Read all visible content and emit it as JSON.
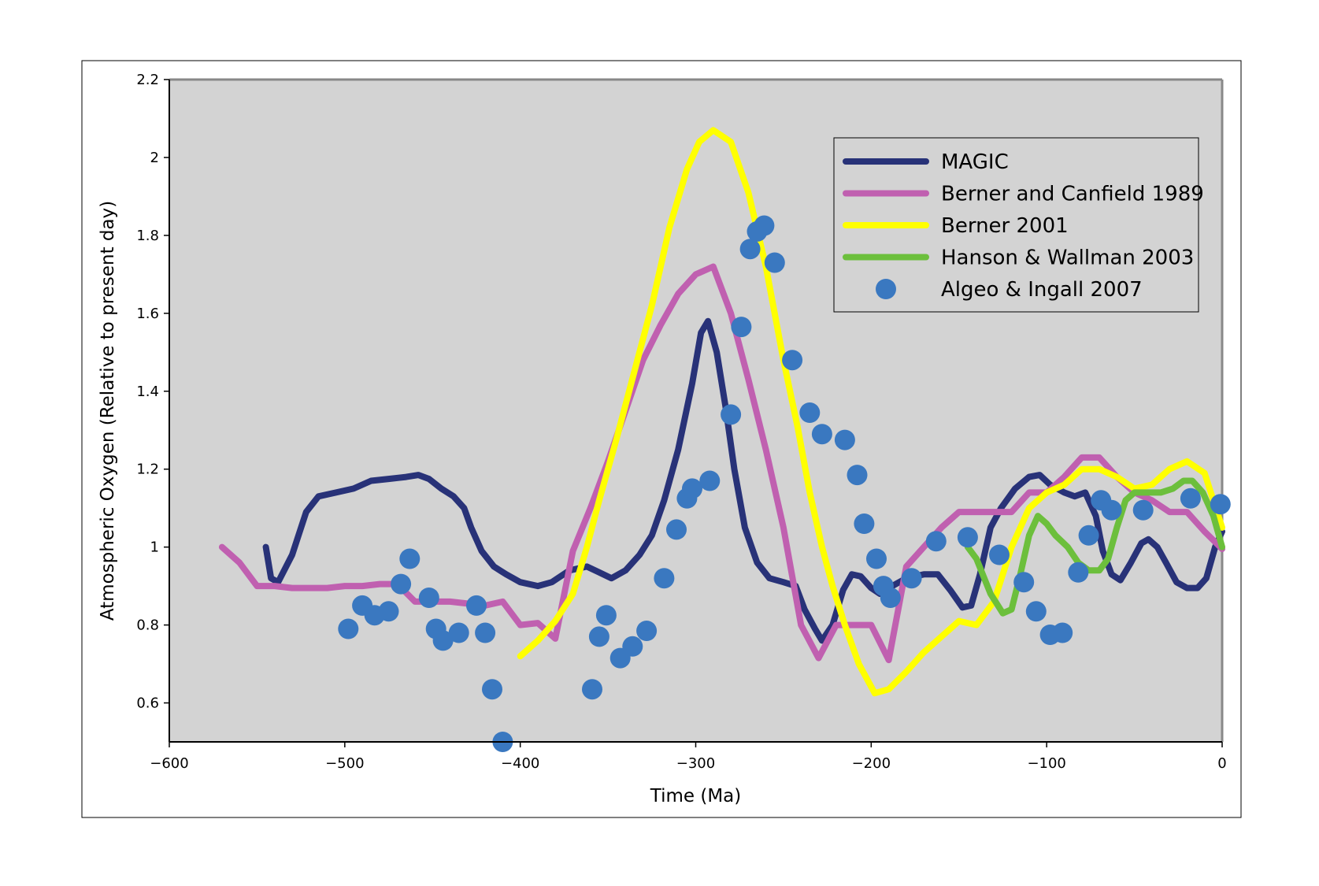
{
  "chart_data": {
    "type": "line",
    "title": "",
    "xlabel": "Time (Ma)",
    "ylabel": "Atmospheric Oxygen (Relative to present day)",
    "xlim": [
      -600,
      0
    ],
    "ylim": [
      0.5,
      2.2
    ],
    "x_ticks": [
      -600,
      -500,
      -400,
      -300,
      -200,
      -100,
      0
    ],
    "x_tick_labels": [
      "−600",
      "−500",
      "−400",
      "−300",
      "−200",
      "−100",
      "0"
    ],
    "y_ticks": [
      0.6,
      0.8,
      1.0,
      1.2,
      1.4,
      1.6,
      1.8,
      2.0,
      2.2
    ],
    "y_tick_labels": [
      "0.6",
      "0.8",
      "1",
      "1.2",
      "1.4",
      "1.6",
      "1.8",
      "2",
      "2.2"
    ],
    "grid": false,
    "legend_position": "top-right",
    "plot_background": "#d3d3d3",
    "series": [
      {
        "name": "MAGIC",
        "kind": "line",
        "color": "#283278",
        "points": [
          [
            -545,
            1.0
          ],
          [
            -542,
            0.92
          ],
          [
            -538,
            0.91
          ],
          [
            -530,
            0.98
          ],
          [
            -522,
            1.09
          ],
          [
            -515,
            1.13
          ],
          [
            -505,
            1.14
          ],
          [
            -495,
            1.15
          ],
          [
            -485,
            1.17
          ],
          [
            -475,
            1.175
          ],
          [
            -465,
            1.18
          ],
          [
            -458,
            1.185
          ],
          [
            -452,
            1.175
          ],
          [
            -445,
            1.15
          ],
          [
            -438,
            1.13
          ],
          [
            -432,
            1.1
          ],
          [
            -428,
            1.05
          ],
          [
            -422,
            0.99
          ],
          [
            -415,
            0.95
          ],
          [
            -408,
            0.93
          ],
          [
            -400,
            0.91
          ],
          [
            -390,
            0.9
          ],
          [
            -382,
            0.91
          ],
          [
            -372,
            0.94
          ],
          [
            -362,
            0.95
          ],
          [
            -355,
            0.935
          ],
          [
            -348,
            0.92
          ],
          [
            -340,
            0.94
          ],
          [
            -332,
            0.98
          ],
          [
            -325,
            1.03
          ],
          [
            -318,
            1.12
          ],
          [
            -310,
            1.25
          ],
          [
            -302,
            1.42
          ],
          [
            -297,
            1.55
          ],
          [
            -293,
            1.58
          ],
          [
            -288,
            1.5
          ],
          [
            -283,
            1.36
          ],
          [
            -278,
            1.2
          ],
          [
            -272,
            1.05
          ],
          [
            -265,
            0.96
          ],
          [
            -258,
            0.92
          ],
          [
            -250,
            0.91
          ],
          [
            -243,
            0.9
          ],
          [
            -238,
            0.84
          ],
          [
            -232,
            0.79
          ],
          [
            -228,
            0.76
          ],
          [
            -222,
            0.8
          ],
          [
            -216,
            0.89
          ],
          [
            -211,
            0.93
          ],
          [
            -206,
            0.925
          ],
          [
            -200,
            0.895
          ],
          [
            -195,
            0.88
          ],
          [
            -188,
            0.9
          ],
          [
            -180,
            0.92
          ],
          [
            -170,
            0.93
          ],
          [
            -162,
            0.93
          ],
          [
            -155,
            0.89
          ],
          [
            -148,
            0.845
          ],
          [
            -143,
            0.85
          ],
          [
            -138,
            0.93
          ],
          [
            -132,
            1.05
          ],
          [
            -126,
            1.1
          ],
          [
            -118,
            1.15
          ],
          [
            -110,
            1.18
          ],
          [
            -104,
            1.185
          ],
          [
            -98,
            1.16
          ],
          [
            -90,
            1.14
          ],
          [
            -84,
            1.13
          ],
          [
            -78,
            1.14
          ],
          [
            -72,
            1.08
          ],
          [
            -68,
            0.99
          ],
          [
            -63,
            0.93
          ],
          [
            -58,
            0.915
          ],
          [
            -52,
            0.96
          ],
          [
            -46,
            1.01
          ],
          [
            -42,
            1.02
          ],
          [
            -37,
            1.0
          ],
          [
            -32,
            0.96
          ],
          [
            -26,
            0.91
          ],
          [
            -20,
            0.895
          ],
          [
            -14,
            0.895
          ],
          [
            -9,
            0.92
          ],
          [
            -4,
            1.0
          ],
          [
            0,
            1.04
          ]
        ]
      },
      {
        "name": "Berner and Canfield 1989",
        "kind": "line",
        "color": "#c060b0",
        "points": [
          [
            -570,
            1.0
          ],
          [
            -560,
            0.96
          ],
          [
            -550,
            0.9
          ],
          [
            -540,
            0.9
          ],
          [
            -530,
            0.895
          ],
          [
            -520,
            0.895
          ],
          [
            -510,
            0.895
          ],
          [
            -500,
            0.9
          ],
          [
            -490,
            0.9
          ],
          [
            -480,
            0.905
          ],
          [
            -470,
            0.905
          ],
          [
            -460,
            0.86
          ],
          [
            -440,
            0.86
          ],
          [
            -420,
            0.85
          ],
          [
            -410,
            0.86
          ],
          [
            -400,
            0.8
          ],
          [
            -390,
            0.805
          ],
          [
            -380,
            0.765
          ],
          [
            -370,
            0.99
          ],
          [
            -360,
            1.1
          ],
          [
            -350,
            1.22
          ],
          [
            -340,
            1.35
          ],
          [
            -330,
            1.48
          ],
          [
            -320,
            1.57
          ],
          [
            -310,
            1.65
          ],
          [
            -300,
            1.7
          ],
          [
            -290,
            1.72
          ],
          [
            -280,
            1.6
          ],
          [
            -270,
            1.43
          ],
          [
            -260,
            1.25
          ],
          [
            -250,
            1.05
          ],
          [
            -240,
            0.8
          ],
          [
            -230,
            0.715
          ],
          [
            -220,
            0.8
          ],
          [
            -210,
            0.8
          ],
          [
            -200,
            0.8
          ],
          [
            -190,
            0.71
          ],
          [
            -180,
            0.95
          ],
          [
            -170,
            1.0
          ],
          [
            -160,
            1.05
          ],
          [
            -150,
            1.09
          ],
          [
            -140,
            1.09
          ],
          [
            -130,
            1.09
          ],
          [
            -120,
            1.09
          ],
          [
            -110,
            1.14
          ],
          [
            -100,
            1.14
          ],
          [
            -90,
            1.18
          ],
          [
            -80,
            1.23
          ],
          [
            -70,
            1.23
          ],
          [
            -60,
            1.18
          ],
          [
            -50,
            1.14
          ],
          [
            -40,
            1.12
          ],
          [
            -30,
            1.09
          ],
          [
            -20,
            1.09
          ],
          [
            -10,
            1.04
          ],
          [
            0,
            0.995
          ]
        ]
      },
      {
        "name": "Berner 2001",
        "kind": "line",
        "color": "#ffff00",
        "points": [
          [
            -400,
            0.72
          ],
          [
            -390,
            0.76
          ],
          [
            -380,
            0.81
          ],
          [
            -370,
            0.88
          ],
          [
            -362,
            1.0
          ],
          [
            -355,
            1.12
          ],
          [
            -345,
            1.28
          ],
          [
            -335,
            1.45
          ],
          [
            -325,
            1.62
          ],
          [
            -315,
            1.82
          ],
          [
            -305,
            1.97
          ],
          [
            -298,
            2.04
          ],
          [
            -290,
            2.07
          ],
          [
            -280,
            2.04
          ],
          [
            -270,
            1.91
          ],
          [
            -260,
            1.72
          ],
          [
            -250,
            1.48
          ],
          [
            -242,
            1.31
          ],
          [
            -235,
            1.14
          ],
          [
            -228,
            1.0
          ],
          [
            -222,
            0.9
          ],
          [
            -215,
            0.8
          ],
          [
            -207,
            0.7
          ],
          [
            -198,
            0.625
          ],
          [
            -190,
            0.635
          ],
          [
            -180,
            0.68
          ],
          [
            -170,
            0.73
          ],
          [
            -160,
            0.77
          ],
          [
            -150,
            0.81
          ],
          [
            -140,
            0.8
          ],
          [
            -130,
            0.86
          ],
          [
            -120,
            1.0
          ],
          [
            -110,
            1.1
          ],
          [
            -100,
            1.14
          ],
          [
            -90,
            1.16
          ],
          [
            -80,
            1.2
          ],
          [
            -70,
            1.2
          ],
          [
            -60,
            1.18
          ],
          [
            -50,
            1.15
          ],
          [
            -40,
            1.16
          ],
          [
            -30,
            1.2
          ],
          [
            -20,
            1.22
          ],
          [
            -10,
            1.19
          ],
          [
            0,
            1.05
          ]
        ]
      },
      {
        "name": "Hanson & Wallman 2003",
        "kind": "line",
        "color": "#6cbf3c",
        "points": [
          [
            -145,
            1.0
          ],
          [
            -140,
            0.97
          ],
          [
            -132,
            0.88
          ],
          [
            -125,
            0.83
          ],
          [
            -120,
            0.84
          ],
          [
            -115,
            0.93
          ],
          [
            -110,
            1.03
          ],
          [
            -105,
            1.08
          ],
          [
            -100,
            1.06
          ],
          [
            -95,
            1.03
          ],
          [
            -88,
            1.0
          ],
          [
            -82,
            0.96
          ],
          [
            -76,
            0.94
          ],
          [
            -70,
            0.94
          ],
          [
            -65,
            0.97
          ],
          [
            -60,
            1.05
          ],
          [
            -55,
            1.12
          ],
          [
            -50,
            1.14
          ],
          [
            -45,
            1.14
          ],
          [
            -40,
            1.14
          ],
          [
            -35,
            1.14
          ],
          [
            -28,
            1.15
          ],
          [
            -22,
            1.17
          ],
          [
            -17,
            1.17
          ],
          [
            -11,
            1.14
          ],
          [
            -5,
            1.08
          ],
          [
            0,
            1.0
          ]
        ]
      },
      {
        "name": "Algeo & Ingall 2007",
        "kind": "scatter",
        "color": "#3a78c0",
        "points": [
          [
            -498,
            0.79
          ],
          [
            -490,
            0.85
          ],
          [
            -483,
            0.825
          ],
          [
            -475,
            0.835
          ],
          [
            -468,
            0.905
          ],
          [
            -463,
            0.97
          ],
          [
            -452,
            0.87
          ],
          [
            -448,
            0.79
          ],
          [
            -444,
            0.76
          ],
          [
            -435,
            0.78
          ],
          [
            -425,
            0.85
          ],
          [
            -420,
            0.78
          ],
          [
            -416,
            0.635
          ],
          [
            -410,
            0.5
          ],
          [
            -359,
            0.635
          ],
          [
            -355,
            0.77
          ],
          [
            -351,
            0.825
          ],
          [
            -343,
            0.715
          ],
          [
            -336,
            0.745
          ],
          [
            -328,
            0.785
          ],
          [
            -318,
            0.92
          ],
          [
            -311,
            1.045
          ],
          [
            -305,
            1.125
          ],
          [
            -302,
            1.15
          ],
          [
            -292,
            1.17
          ],
          [
            -280,
            1.34
          ],
          [
            -274,
            1.565
          ],
          [
            -269,
            1.765
          ],
          [
            -265,
            1.81
          ],
          [
            -261,
            1.825
          ],
          [
            -255,
            1.73
          ],
          [
            -245,
            1.48
          ],
          [
            -235,
            1.345
          ],
          [
            -228,
            1.29
          ],
          [
            -215,
            1.275
          ],
          [
            -208,
            1.185
          ],
          [
            -204,
            1.06
          ],
          [
            -197,
            0.97
          ],
          [
            -193,
            0.9
          ],
          [
            -189,
            0.87
          ],
          [
            -177,
            0.92
          ],
          [
            -163,
            1.015
          ],
          [
            -145,
            1.025
          ],
          [
            -127,
            0.98
          ],
          [
            -113,
            0.91
          ],
          [
            -106,
            0.835
          ],
          [
            -98,
            0.775
          ],
          [
            -91,
            0.78
          ],
          [
            -82,
            0.935
          ],
          [
            -76,
            1.03
          ],
          [
            -69,
            1.12
          ],
          [
            -63,
            1.095
          ],
          [
            -45,
            1.095
          ],
          [
            -18,
            1.125
          ],
          [
            -1,
            1.11
          ]
        ]
      }
    ]
  }
}
